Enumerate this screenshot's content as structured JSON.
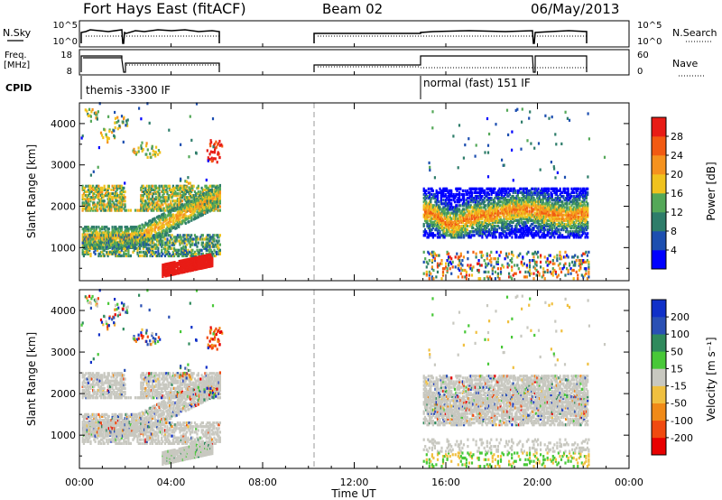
{
  "header": {
    "title": "Fort Hays East (fitACF)",
    "beam": "Beam 02",
    "date": "06/May/2013"
  },
  "strips": {
    "nsky_label": "N.Sky",
    "nsky_ticks": [
      "10^5",
      "10^0"
    ],
    "nsearch_label": "N.Search",
    "freq_label_1": "Freq.",
    "freq_label_2": "[MHz]",
    "freq_ticks": [
      "18",
      "8"
    ],
    "nave_label": "Nave",
    "nave_ticks": [
      "60",
      "0"
    ],
    "cpid_label": "CPID",
    "cpid_1": "themis -3300 IF",
    "cpid_2": "normal (fast) 151 IF"
  },
  "colors": {
    "power": [
      "#0000ff",
      "#1d4fb0",
      "#2e7d6a",
      "#54a858",
      "#f0c21e",
      "#f5921e",
      "#f25a12",
      "#e81c16"
    ],
    "velocity": [
      "#e80000",
      "#f04a10",
      "#f08a18",
      "#f0c040",
      "#c8c8c0",
      "#48c838",
      "#2f8a5c",
      "#2a50b4",
      "#1030c8"
    ],
    "ground": "#c8c8c0"
  },
  "chart_data": [
    {
      "type": "heatmap",
      "title": "",
      "xlabel": "",
      "ylabel": "Slant Range [km]",
      "xlim": [
        0,
        24
      ],
      "ylim": [
        200,
        4500
      ],
      "yticks": [
        "4000",
        "3000",
        "2000",
        "1000"
      ],
      "colorbar": {
        "label": "Power [dB]",
        "ticks": [
          "28",
          "24",
          "20",
          "16",
          "12",
          "8",
          "4"
        ],
        "range": [
          0,
          32
        ]
      },
      "echo_regions": [
        {
          "t0": 0.1,
          "t1": 6.1,
          "range_km": [
            500,
            4300
          ],
          "type": "ionospheric"
        },
        {
          "t0": 15.0,
          "t1": 22.2,
          "range_km": [
            1250,
            2450
          ],
          "type": "ionospheric"
        },
        {
          "t0": 15.0,
          "t1": 22.2,
          "range_km": [
            200,
            900
          ],
          "type": "ground"
        }
      ]
    },
    {
      "type": "heatmap",
      "title": "",
      "xlabel": "Time UT",
      "ylabel": "Slant Range [km]",
      "xlim": [
        0,
        24
      ],
      "ylim": [
        200,
        4500
      ],
      "xticks": [
        "00:00",
        "04:00",
        "08:00",
        "12:00",
        "16:00",
        "20:00",
        "00:00"
      ],
      "yticks": [
        "4000",
        "3000",
        "2000",
        "1000"
      ],
      "colorbar": {
        "label": "Velocity [m s⁻¹]",
        "ticks": [
          "200",
          "100",
          "50",
          "15",
          "-15",
          "-50",
          "-100",
          "-200"
        ],
        "range": [
          -250,
          250
        ]
      }
    }
  ]
}
